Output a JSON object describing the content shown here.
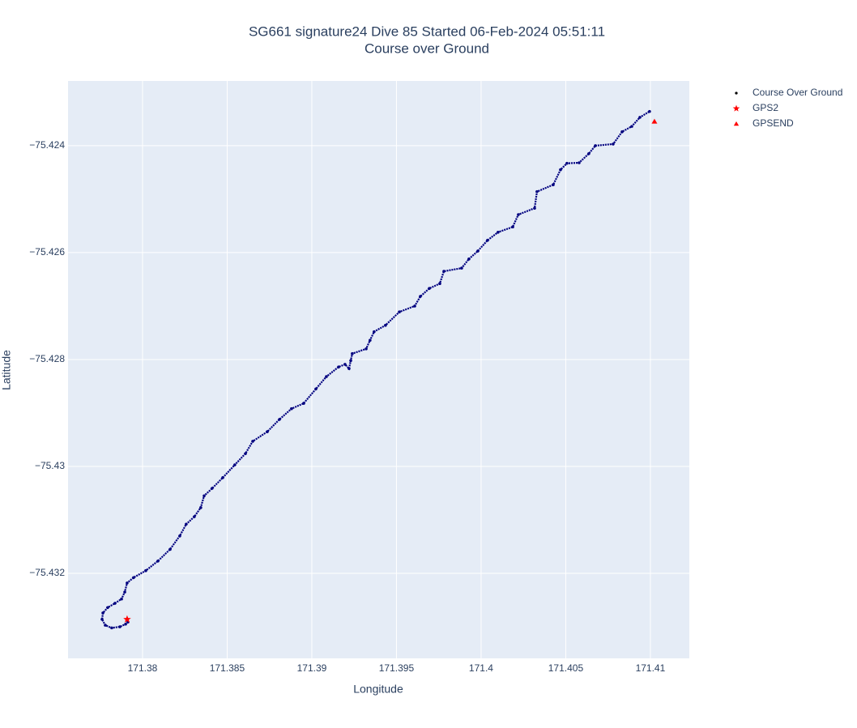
{
  "chart_data": {
    "type": "scatter",
    "title": [
      "SG661 signature24 Dive 85 Started 06-Feb-2024 05:51:11",
      "Course over Ground"
    ],
    "x_label": "Longitude",
    "y_label": "Latitude",
    "xlim": [
      171.3756,
      171.4123
    ],
    "ylim": [
      -75.43359,
      -75.42279
    ],
    "xticks": [
      171.38,
      171.385,
      171.39,
      171.395,
      171.4,
      171.405,
      171.41
    ],
    "yticks": [
      {
        "value": -75.424,
        "label": "−75.424"
      },
      {
        "value": -75.426,
        "label": "−75.426"
      },
      {
        "value": -75.428,
        "label": "−75.428"
      },
      {
        "value": -75.43,
        "label": "−75.43"
      },
      {
        "value": -75.432,
        "label": "−75.432"
      }
    ],
    "grid": true,
    "series": [
      {
        "name": "Course Over Ground",
        "color": "#00007f",
        "marker": "dot",
        "x": [
          171.37914,
          171.379,
          171.37866,
          171.37818,
          171.3778,
          171.37761,
          171.37766,
          171.37794,
          171.37837,
          171.37876,
          171.37895,
          171.37909,
          171.37947,
          171.38019,
          171.38091,
          171.38163,
          171.3822,
          171.38258,
          171.38306,
          171.38344,
          171.38364,
          171.38411,
          171.38474,
          171.38545,
          171.38608,
          171.38651,
          171.38737,
          171.38809,
          171.3888,
          171.38952,
          171.39024,
          171.39086,
          171.39158,
          171.39196,
          171.3922,
          171.3923,
          171.39239,
          171.39321,
          171.39344,
          171.39368,
          171.39435,
          171.39517,
          171.39608,
          171.39641,
          171.39694,
          171.39756,
          171.3978,
          171.39885,
          171.39928,
          171.39981,
          171.40038,
          171.401,
          171.40187,
          171.4022,
          171.40316,
          171.4033,
          171.40426,
          171.40469,
          171.40507,
          171.40579,
          171.40636,
          171.40675,
          171.4078,
          171.40833,
          171.4089,
          171.40938,
          171.40995
        ],
        "y": [
          -75.43291,
          -75.43295,
          -75.433,
          -75.43302,
          -75.43297,
          -75.43286,
          -75.43274,
          -75.43264,
          -75.43256,
          -75.43248,
          -75.43235,
          -75.43218,
          -75.43208,
          -75.43195,
          -75.43177,
          -75.43155,
          -75.4313,
          -75.43108,
          -75.43094,
          -75.43077,
          -75.43055,
          -75.43041,
          -75.43021,
          -75.42997,
          -75.42976,
          -75.42953,
          -75.42935,
          -75.42912,
          -75.42892,
          -75.42882,
          -75.42855,
          -75.42832,
          -75.42814,
          -75.42809,
          -75.42817,
          -75.42802,
          -75.42789,
          -75.4278,
          -75.42764,
          -75.42748,
          -75.42736,
          -75.42711,
          -75.427,
          -75.42682,
          -75.42667,
          -75.42658,
          -75.42635,
          -75.42629,
          -75.42612,
          -75.42597,
          -75.42577,
          -75.42562,
          -75.42552,
          -75.42529,
          -75.42517,
          -75.42486,
          -75.42473,
          -75.42445,
          -75.42433,
          -75.42432,
          -75.42415,
          -75.424,
          -75.42397,
          -75.42374,
          -75.42364,
          -75.42347,
          -75.42336
        ]
      },
      {
        "name": "GPS2",
        "color": "#ff0000",
        "marker": "star",
        "x": [
          171.37909
        ],
        "y": [
          -75.43286
        ]
      },
      {
        "name": "GPSEND",
        "color": "#ff0000",
        "marker": "triangle",
        "x": [
          171.41024
        ],
        "y": [
          -75.42355
        ]
      }
    ]
  }
}
